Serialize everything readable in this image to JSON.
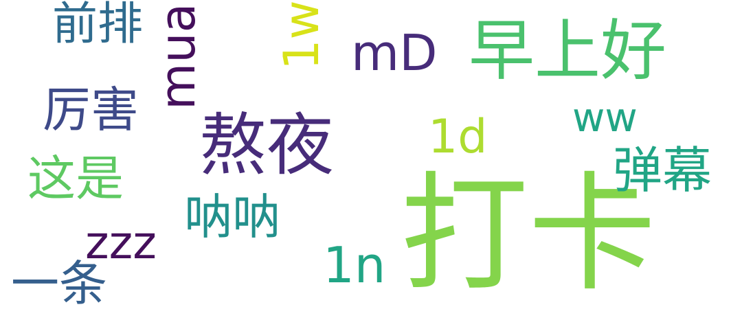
{
  "colors": {
    "background": "#ffffff",
    "light_green": "#84d44b",
    "dark_purple": "#472c7a",
    "medium_green": "#4ac16d",
    "teal_blue": "#2f6b8e",
    "indigo": "#3e4a89",
    "green": "#5ec962",
    "cyan_teal": "#22908c",
    "teal": "#21a585",
    "deep_purple": "#440f5b",
    "blue": "#355f8d",
    "yellow_green": "#addc30",
    "yellow": "#d8e219"
  },
  "words": [
    {
      "id": "daka",
      "text": "打卡",
      "color": "#84d44b"
    },
    {
      "id": "aoye",
      "text": "熬夜",
      "color": "#472c7a"
    },
    {
      "id": "zaoshang",
      "text": "早上好",
      "color": "#4ac16d"
    },
    {
      "id": "qianpai",
      "text": "前排",
      "color": "#2f6b8e"
    },
    {
      "id": "lihai",
      "text": "厉害",
      "color": "#3e4a89"
    },
    {
      "id": "zheshi",
      "text": "这是",
      "color": "#5ec962"
    },
    {
      "id": "nana",
      "text": "呐呐",
      "color": "#22908c"
    },
    {
      "id": "danmu",
      "text": "弹幕",
      "color": "#21a585"
    },
    {
      "id": "yitiao",
      "text": "一条",
      "color": "#355f8d"
    },
    {
      "id": "md",
      "text": "mD",
      "color": "#472c7a"
    },
    {
      "id": "ww",
      "text": "ww",
      "color": "#21a585"
    },
    {
      "id": "1d",
      "text": "1d",
      "color": "#addc30"
    },
    {
      "id": "1n",
      "text": "1n",
      "color": "#21a585"
    },
    {
      "id": "zzz",
      "text": "zzz",
      "color": "#440f5b"
    },
    {
      "id": "mua",
      "text": "mua",
      "color": "#440f5b"
    },
    {
      "id": "1w",
      "text": "1w",
      "color": "#d8e219"
    }
  ]
}
